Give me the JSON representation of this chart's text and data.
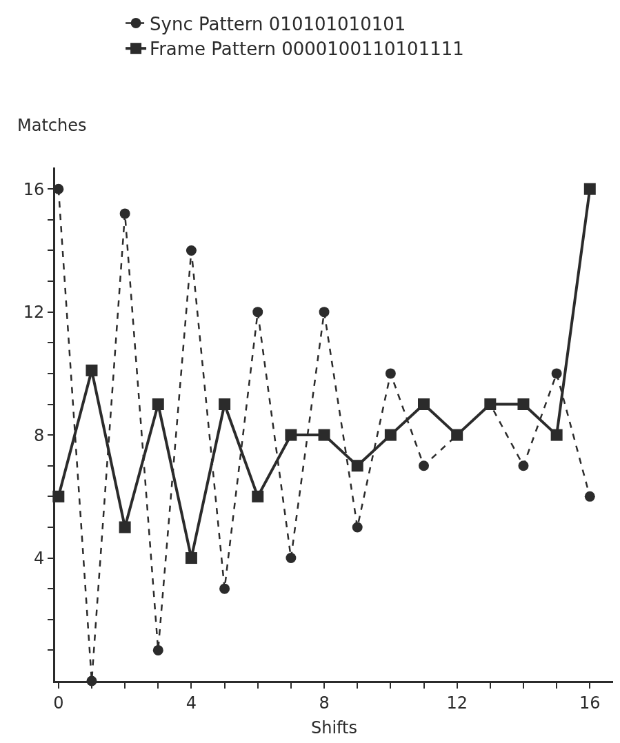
{
  "chart_data": {
    "type": "line",
    "xlabel": "Shifts",
    "ylabel": "Matches",
    "x": [
      0,
      1,
      2,
      3,
      4,
      5,
      6,
      7,
      8,
      9,
      10,
      11,
      12,
      13,
      14,
      15,
      16
    ],
    "series": [
      {
        "name": "Sync Pattern 010101010101",
        "color": "#2b2b2b",
        "marker": "circle",
        "line_style": "dashed",
        "values": [
          16,
          0,
          15.2,
          1,
          14,
          3,
          12,
          4,
          12,
          5,
          10,
          7,
          8,
          9,
          7,
          10,
          6
        ]
      },
      {
        "name": "Frame Pattern 0000100110101111",
        "color": "#2b2b2b",
        "marker": "square",
        "line_style": "solid",
        "values": [
          6,
          10.1,
          5,
          9,
          4,
          9,
          6,
          8,
          8,
          7,
          8,
          9,
          8,
          9,
          9,
          8,
          16
        ]
      }
    ],
    "xlim": [
      -0.1,
      16.7
    ],
    "ylim": [
      0,
      16.7
    ],
    "xticks": [
      0,
      {
        "value": 1,
        "label": null
      },
      {
        "value": 2,
        "label": null
      },
      {
        "value": 3,
        "label": null
      },
      4,
      {
        "value": 5,
        "label": null
      },
      {
        "value": 6,
        "label": null
      },
      {
        "value": 7,
        "label": null
      },
      8,
      {
        "value": 9,
        "label": null
      },
      {
        "value": 10,
        "label": null
      },
      {
        "value": 11,
        "label": null
      },
      12,
      {
        "value": 13,
        "label": null
      },
      {
        "value": 14,
        "label": null
      },
      {
        "value": 15,
        "label": null
      },
      16
    ],
    "yticks": [
      {
        "value": 1,
        "label": null
      },
      {
        "value": 2,
        "label": null
      },
      {
        "value": 3,
        "label": null
      },
      4,
      {
        "value": 5,
        "label": null
      },
      {
        "value": 6,
        "label": null
      },
      {
        "value": 7,
        "label": null
      },
      8,
      {
        "value": 9,
        "label": null
      },
      {
        "value": 10,
        "label": null
      },
      {
        "value": 11,
        "label": null
      },
      12,
      {
        "value": 13,
        "label": null
      },
      {
        "value": 14,
        "label": null
      },
      {
        "value": 15,
        "label": null
      },
      16
    ],
    "legend": "top left"
  }
}
